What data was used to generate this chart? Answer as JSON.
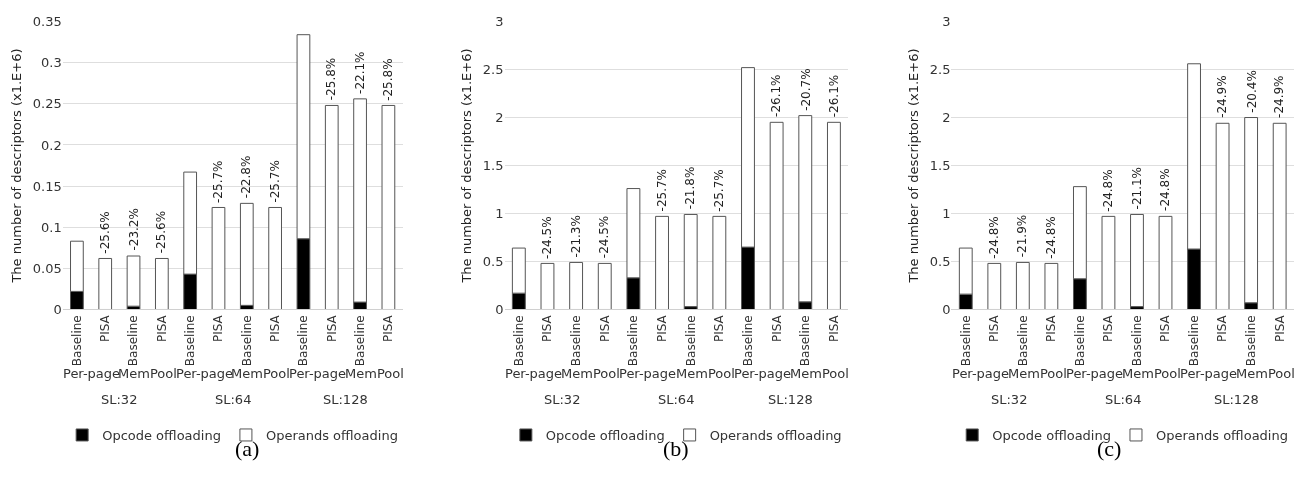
{
  "chart_data": [
    {
      "type": "bar",
      "title": "(a)",
      "ylabel": "The number of descriptors (x1.E+6)",
      "stacked": true,
      "grid": "y",
      "legend": "bottom",
      "categories": [
        "Baseline",
        "PISA",
        "Baseline",
        "PISA",
        "Baseline",
        "PISA",
        "Baseline",
        "PISA",
        "Baseline",
        "PISA",
        "Baseline",
        "PISA"
      ],
      "annotations": [
        "Per-page",
        "MemPool",
        "Per-page",
        "MemPool",
        "Per-page",
        "MemPool",
        "SL:32",
        "SL:64",
        "SL:128",
        {
          "text": "-25.6%",
          "y": 0.062
        },
        {
          "text": "-23.2%",
          "y": 0.065
        },
        {
          "text": "-25.6%",
          "y": 0.062
        },
        {
          "text": "-25.7%",
          "y": 0.124
        },
        {
          "text": "-22.8%",
          "y": 0.129
        },
        {
          "text": "-25.7%",
          "y": 0.124
        },
        {
          "text": "-25.8%",
          "y": 0.248
        },
        {
          "text": "-22.1%",
          "y": 0.256
        },
        {
          "text": "-25.8%",
          "y": 0.248
        }
      ],
      "ylim": [
        0,
        0.35
      ],
      "yticks": [
        0,
        0.05,
        0.1,
        0.15,
        0.2,
        0.25,
        0.3,
        0.35
      ],
      "series": [
        {
          "name": "Opcode offloading",
          "color": "#000000",
          "values": [
            0.022,
            0,
            0.004,
            0,
            0.043,
            0,
            0.005,
            0,
            0.086,
            0,
            0.009,
            0
          ]
        },
        {
          "name": "Operands offloading",
          "color": "#ffffff",
          "values": [
            0.061,
            0.062,
            0.061,
            0.062,
            0.124,
            0.124,
            0.124,
            0.124,
            0.248,
            0.248,
            0.247,
            0.248
          ]
        }
      ]
    },
    {
      "type": "bar",
      "title": "(b)",
      "ylabel": "The number of descriptors (x1.E+6)",
      "stacked": true,
      "grid": "y",
      "legend": "bottom",
      "categories": [
        "Baseline",
        "PISA",
        "Baseline",
        "PISA",
        "Baseline",
        "PISA",
        "Baseline",
        "PISA",
        "Baseline",
        "PISA",
        "Baseline",
        "PISA"
      ],
      "annotations": [
        "Per-page",
        "MemPool",
        "Per-page",
        "MemPool",
        "Per-page",
        "MemPool",
        "SL:32",
        "SL:64",
        "SL:128",
        {
          "text": "-24.5%",
          "y": 0.48
        },
        {
          "text": "-21.3%",
          "y": 0.49
        },
        {
          "text": "-24.5%",
          "y": 0.48
        },
        {
          "text": "-25.7%",
          "y": 0.97
        },
        {
          "text": "-21.8%",
          "y": 0.99
        },
        {
          "text": "-25.7%",
          "y": 0.97
        },
        {
          "text": "-26.1%",
          "y": 1.95
        },
        {
          "text": "-20.7%",
          "y": 2.02
        },
        {
          "text": "-26.1%",
          "y": 1.95
        }
      ],
      "ylim": [
        0,
        3
      ],
      "yticks": [
        0,
        0.5,
        1,
        1.5,
        2,
        2.5,
        3
      ],
      "series": [
        {
          "name": "Opcode offloading",
          "color": "#000000",
          "values": [
            0.17,
            0,
            null,
            0,
            0.33,
            0,
            0.03,
            0,
            0.65,
            0,
            0.08,
            0
          ]
        },
        {
          "name": "Operands offloading",
          "color": "#ffffff",
          "values": [
            0.47,
            0.48,
            0.49,
            0.48,
            0.93,
            0.97,
            0.96,
            0.97,
            1.87,
            1.95,
            1.94,
            1.95
          ]
        }
      ]
    },
    {
      "type": "bar",
      "title": "(c)",
      "ylabel": "The number of descriptors (x1.E+6)",
      "stacked": true,
      "grid": "y",
      "legend": "bottom",
      "categories": [
        "Baseline",
        "PISA",
        "Baseline",
        "PISA",
        "Baseline",
        "PISA",
        "Baseline",
        "PISA",
        "Baseline",
        "PISA",
        "Baseline",
        "PISA"
      ],
      "annotations": [
        "Per-page",
        "MemPool",
        "Per-page",
        "MemPool",
        "Per-page",
        "MemPool",
        "SL:32",
        "SL:64",
        "SL:128",
        {
          "text": "-24.8%",
          "y": 0.48
        },
        {
          "text": "-21.9%",
          "y": 0.49
        },
        {
          "text": "-24.8%",
          "y": 0.48
        },
        {
          "text": "-24.8%",
          "y": 0.97
        },
        {
          "text": "-21.1%",
          "y": 0.99
        },
        {
          "text": "-24.8%",
          "y": 0.97
        },
        {
          "text": "-24.9%",
          "y": 1.94
        },
        {
          "text": "-20.4%",
          "y": 2.0
        },
        {
          "text": "-24.9%",
          "y": 1.94
        }
      ],
      "ylim": [
        0,
        3
      ],
      "yticks": [
        0,
        0.5,
        1,
        1.5,
        2,
        2.5,
        3
      ],
      "series": [
        {
          "name": "Opcode offloading",
          "color": "#000000",
          "values": [
            0.16,
            0,
            null,
            0,
            0.32,
            0,
            0.03,
            0,
            0.63,
            0,
            0.07,
            0
          ]
        },
        {
          "name": "Operands offloading",
          "color": "#ffffff",
          "values": [
            0.48,
            0.48,
            0.49,
            0.48,
            0.96,
            0.97,
            0.96,
            0.97,
            1.93,
            1.94,
            1.93,
            1.94
          ]
        }
      ]
    }
  ]
}
